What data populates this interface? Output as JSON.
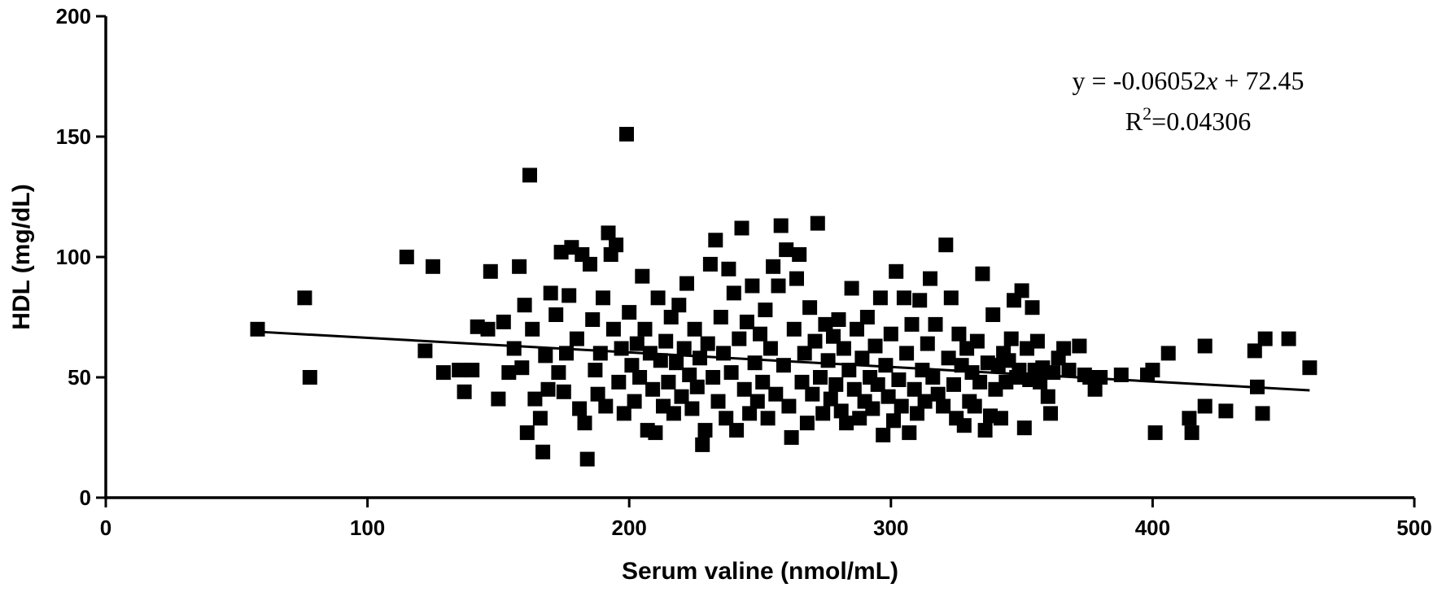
{
  "chart_data": {
    "type": "scatter",
    "xlabel": "Serum valine (nmol/mL)",
    "ylabel": "HDL (mg/dL)",
    "xlim": [
      0,
      500
    ],
    "ylim": [
      0,
      200
    ],
    "xticks": [
      "0",
      "100",
      "200",
      "300",
      "400",
      "500"
    ],
    "yticks": [
      "0",
      "50",
      "100",
      "150",
      "200"
    ],
    "xtick_values": [
      0,
      100,
      200,
      300,
      400,
      500
    ],
    "ytick_values": [
      0,
      50,
      100,
      150,
      200
    ],
    "grid": false,
    "legend": "none",
    "marker": "square",
    "marker_color": "#000000",
    "annotation": {
      "equation_prefix": "y = -0.06052",
      "equation_var": "x",
      "equation_suffix": " + 72.45",
      "r2_prefix": "R",
      "r2_sup": "2",
      "r2_suffix": "=0.04306"
    },
    "trendline": {
      "slope": -0.06052,
      "intercept": 72.45,
      "x_range": [
        58,
        460
      ]
    },
    "points": [
      [
        58,
        70
      ],
      [
        76,
        83
      ],
      [
        78,
        50
      ],
      [
        115,
        100
      ],
      [
        122,
        61
      ],
      [
        125,
        96
      ],
      [
        129,
        52
      ],
      [
        135,
        53
      ],
      [
        137,
        44
      ],
      [
        140,
        53
      ],
      [
        142,
        71
      ],
      [
        146,
        70
      ],
      [
        147,
        94
      ],
      [
        150,
        41
      ],
      [
        152,
        73
      ],
      [
        154,
        52
      ],
      [
        156,
        62
      ],
      [
        158,
        96
      ],
      [
        159,
        54
      ],
      [
        160,
        80
      ],
      [
        161,
        27
      ],
      [
        162,
        134
      ],
      [
        163,
        70
      ],
      [
        164,
        41
      ],
      [
        166,
        33
      ],
      [
        167,
        19
      ],
      [
        168,
        59
      ],
      [
        169,
        45
      ],
      [
        170,
        85
      ],
      [
        172,
        76
      ],
      [
        173,
        52
      ],
      [
        174,
        102
      ],
      [
        175,
        44
      ],
      [
        176,
        60
      ],
      [
        177,
        84
      ],
      [
        178,
        104
      ],
      [
        180,
        66
      ],
      [
        181,
        37
      ],
      [
        182,
        101
      ],
      [
        183,
        31
      ],
      [
        184,
        16
      ],
      [
        185,
        97
      ],
      [
        186,
        74
      ],
      [
        187,
        53
      ],
      [
        188,
        43
      ],
      [
        189,
        60
      ],
      [
        190,
        83
      ],
      [
        191,
        38
      ],
      [
        192,
        110
      ],
      [
        193,
        101
      ],
      [
        194,
        70
      ],
      [
        195,
        105
      ],
      [
        196,
        48
      ],
      [
        197,
        62
      ],
      [
        198,
        35
      ],
      [
        199,
        151
      ],
      [
        200,
        77
      ],
      [
        201,
        55
      ],
      [
        202,
        40
      ],
      [
        203,
        64
      ],
      [
        204,
        50
      ],
      [
        205,
        92
      ],
      [
        206,
        70
      ],
      [
        207,
        28
      ],
      [
        208,
        60
      ],
      [
        209,
        45
      ],
      [
        210,
        27
      ],
      [
        211,
        83
      ],
      [
        212,
        57
      ],
      [
        213,
        38
      ],
      [
        214,
        65
      ],
      [
        215,
        48
      ],
      [
        216,
        75
      ],
      [
        217,
        35
      ],
      [
        218,
        56
      ],
      [
        219,
        80
      ],
      [
        220,
        42
      ],
      [
        221,
        62
      ],
      [
        222,
        89
      ],
      [
        223,
        51
      ],
      [
        224,
        37
      ],
      [
        225,
        70
      ],
      [
        226,
        46
      ],
      [
        227,
        58
      ],
      [
        228,
        22
      ],
      [
        229,
        28
      ],
      [
        230,
        64
      ],
      [
        231,
        97
      ],
      [
        232,
        50
      ],
      [
        233,
        107
      ],
      [
        234,
        40
      ],
      [
        235,
        75
      ],
      [
        236,
        60
      ],
      [
        237,
        33
      ],
      [
        238,
        95
      ],
      [
        239,
        52
      ],
      [
        240,
        85
      ],
      [
        241,
        28
      ],
      [
        242,
        66
      ],
      [
        243,
        112
      ],
      [
        244,
        45
      ],
      [
        245,
        73
      ],
      [
        246,
        35
      ],
      [
        247,
        88
      ],
      [
        248,
        56
      ],
      [
        249,
        40
      ],
      [
        250,
        68
      ],
      [
        251,
        48
      ],
      [
        252,
        78
      ],
      [
        253,
        33
      ],
      [
        254,
        62
      ],
      [
        255,
        96
      ],
      [
        256,
        43
      ],
      [
        257,
        88
      ],
      [
        258,
        113
      ],
      [
        259,
        55
      ],
      [
        260,
        103
      ],
      [
        261,
        38
      ],
      [
        262,
        25
      ],
      [
        263,
        70
      ],
      [
        264,
        91
      ],
      [
        265,
        101
      ],
      [
        266,
        48
      ],
      [
        267,
        60
      ],
      [
        268,
        31
      ],
      [
        269,
        79
      ],
      [
        270,
        43
      ],
      [
        271,
        65
      ],
      [
        272,
        114
      ],
      [
        273,
        50
      ],
      [
        274,
        35
      ],
      [
        275,
        72
      ],
      [
        276,
        57
      ],
      [
        277,
        41
      ],
      [
        278,
        67
      ],
      [
        279,
        47
      ],
      [
        280,
        74
      ],
      [
        281,
        36
      ],
      [
        282,
        62
      ],
      [
        283,
        31
      ],
      [
        284,
        53
      ],
      [
        285,
        87
      ],
      [
        286,
        45
      ],
      [
        287,
        70
      ],
      [
        288,
        33
      ],
      [
        289,
        58
      ],
      [
        290,
        40
      ],
      [
        291,
        75
      ],
      [
        292,
        50
      ],
      [
        293,
        37
      ],
      [
        294,
        63
      ],
      [
        295,
        47
      ],
      [
        296,
        83
      ],
      [
        297,
        26
      ],
      [
        298,
        55
      ],
      [
        299,
        42
      ],
      [
        300,
        68
      ],
      [
        301,
        32
      ],
      [
        302,
        94
      ],
      [
        303,
        49
      ],
      [
        304,
        38
      ],
      [
        305,
        83
      ],
      [
        306,
        60
      ],
      [
        307,
        27
      ],
      [
        308,
        72
      ],
      [
        309,
        45
      ],
      [
        310,
        35
      ],
      [
        311,
        82
      ],
      [
        312,
        53
      ],
      [
        313,
        40
      ],
      [
        314,
        64
      ],
      [
        315,
        91
      ],
      [
        316,
        50
      ],
      [
        317,
        72
      ],
      [
        318,
        43
      ],
      [
        320,
        38
      ],
      [
        321,
        105
      ],
      [
        322,
        58
      ],
      [
        323,
        83
      ],
      [
        324,
        47
      ],
      [
        325,
        33
      ],
      [
        326,
        68
      ],
      [
        327,
        55
      ],
      [
        328,
        30
      ],
      [
        329,
        62
      ],
      [
        330,
        40
      ],
      [
        331,
        52
      ],
      [
        332,
        38
      ],
      [
        333,
        65
      ],
      [
        334,
        48
      ],
      [
        335,
        93
      ],
      [
        336,
        28
      ],
      [
        337,
        56
      ],
      [
        338,
        34
      ],
      [
        339,
        76
      ],
      [
        340,
        45
      ],
      [
        341,
        55
      ],
      [
        342,
        33
      ],
      [
        343,
        60
      ],
      [
        344,
        48
      ],
      [
        345,
        57
      ],
      [
        346,
        66
      ],
      [
        347,
        82
      ],
      [
        348,
        50
      ],
      [
        349,
        53
      ],
      [
        350,
        86
      ],
      [
        351,
        29
      ],
      [
        352,
        62
      ],
      [
        353,
        49
      ],
      [
        354,
        79
      ],
      [
        355,
        53
      ],
      [
        356,
        65
      ],
      [
        357,
        48
      ],
      [
        358,
        54
      ],
      [
        360,
        42
      ],
      [
        361,
        35
      ],
      [
        362,
        52
      ],
      [
        364,
        58
      ],
      [
        366,
        62
      ],
      [
        368,
        53
      ],
      [
        372,
        63
      ],
      [
        374,
        51
      ],
      [
        376,
        50
      ],
      [
        378,
        45
      ],
      [
        380,
        50
      ],
      [
        388,
        51
      ],
      [
        398,
        51
      ],
      [
        400,
        53
      ],
      [
        401,
        27
      ],
      [
        406,
        60
      ],
      [
        414,
        33
      ],
      [
        415,
        27
      ],
      [
        420,
        63
      ],
      [
        420,
        38
      ],
      [
        428,
        36
      ],
      [
        439,
        61
      ],
      [
        440,
        46
      ],
      [
        442,
        35
      ],
      [
        443,
        66
      ],
      [
        452,
        66
      ],
      [
        460,
        54
      ]
    ]
  }
}
